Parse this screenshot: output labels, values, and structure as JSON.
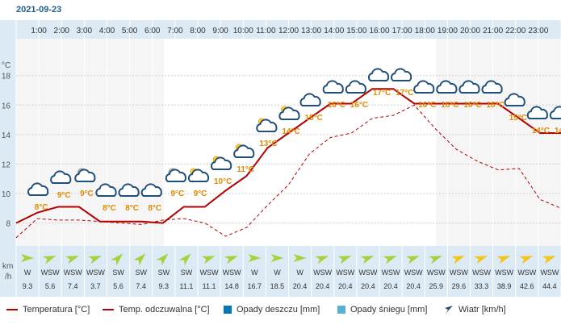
{
  "chart_data": {
    "type": "line",
    "date": "2021-09-23",
    "y_unit_label": "°C",
    "wind_unit_label": [
      "km",
      "/h"
    ],
    "hours": [
      "1:00",
      "2:00",
      "3:00",
      "4:00",
      "5:00",
      "6:00",
      "7:00",
      "8:00",
      "9:00",
      "10:00",
      "11:00",
      "12:00",
      "13:00",
      "14:00",
      "15:00",
      "16:00",
      "17:00",
      "18:00",
      "19:00",
      "20:00",
      "21:00",
      "22:00",
      "23:00"
    ],
    "y_ticks": [
      8,
      10,
      12,
      14,
      16,
      18
    ],
    "ylim": [
      6.5,
      20.5
    ],
    "temperature": [
      8,
      8.7,
      9.1,
      9.1,
      8.1,
      8.1,
      8.1,
      8,
      9.1,
      9.1,
      10.2,
      11.2,
      13.1,
      14.1,
      15.1,
      16.1,
      16.1,
      17.1,
      17.1,
      16.1,
      16.1,
      16.1,
      16.1,
      16.1,
      15.1,
      14.1,
      14.1
    ],
    "feels_like": [
      7,
      8.3,
      8.2,
      8.2,
      8.1,
      8,
      7.9,
      8.2,
      8.3,
      8,
      7.1,
      7.7,
      9.2,
      10.6,
      12.7,
      13.8,
      14.1,
      15.1,
      15.3,
      16,
      14.4,
      13,
      12.2,
      11.6,
      11.7,
      9.6,
      9
    ],
    "temp_labels": [
      "8°C",
      "9°C",
      "9°C",
      "8°C",
      "8°C",
      "8°C",
      "9°C",
      "9°C",
      "10°C",
      "11°C",
      "13°C",
      "14°C",
      "15°C",
      "16°C",
      "16°C",
      "17°C",
      "17°C",
      "16°C",
      "16°C",
      "16°C",
      "16°C",
      "15°C",
      "14°C",
      "14°C"
    ],
    "weather_icons": [
      "cloud-icon",
      "cloud-icon",
      "partly-cloudy-night-icon",
      "cloud-icon",
      "cloud-icon",
      "cloud-icon",
      "partly-cloudy-night-icon",
      "partly-sunny-icon",
      "partly-sunny-icon",
      "partly-sunny-icon",
      "partly-sunny-icon",
      "partly-sunny-icon",
      "cloud-icon",
      "cloud-icon",
      "cloud-icon",
      "cloud-icon",
      "cloud-icon",
      "cloud-icon",
      "cloud-icon",
      "cloud-icon",
      "cloud-icon",
      "cloud-icon",
      "cloud-icon",
      "cloud-icon"
    ],
    "wind_dir": [
      "W",
      "WSW",
      "WSW",
      "WSW",
      "SW",
      "SW",
      "SW",
      "SW",
      "WSW",
      "WSW",
      "W",
      "W",
      "W",
      "WSW",
      "WSW",
      "WSW",
      "WSW",
      "WSW",
      "WSW",
      "WSW",
      "WSW",
      "WSW",
      "WSW",
      "WSW"
    ],
    "wind_speed": [
      "9.3",
      "5.6",
      "7.4",
      "3.7",
      "5.6",
      "7.4",
      "9.3",
      "11.1",
      "11.1",
      "14.8",
      "16.7",
      "18.5",
      "20.4",
      "20.4",
      "20.4",
      "20.4",
      "20.4",
      "20.4",
      "25.9",
      "29.6",
      "33.3",
      "38.9",
      "42.6",
      "44.4"
    ],
    "wind_color_steps": [
      "green",
      "green",
      "green",
      "green",
      "green",
      "green",
      "green",
      "green",
      "green",
      "green",
      "green",
      "green",
      "green",
      "green",
      "green",
      "green",
      "green",
      "green",
      "green",
      "yellow",
      "yellow",
      "yellow",
      "yellow",
      "yellow"
    ],
    "colors": {
      "temperature": "#b30000",
      "feels_like": "#b30000",
      "header_bg": "#dbeaf5",
      "plot_bg": "#f5f5f5",
      "label": "#e08a00",
      "wind_green": "#a6d13b",
      "wind_yellow": "#f3c51a",
      "rain": "#0077b6",
      "snow": "#5ab0d0"
    }
  },
  "legend": {
    "temperature": "Temperatura [°C]",
    "feels_like": "Temp. odczuwalna [°C]",
    "rain": "Opady deszczu [mm]",
    "snow": "Opady śniegu [mm]",
    "wind": "Wiatr [km/h]"
  }
}
